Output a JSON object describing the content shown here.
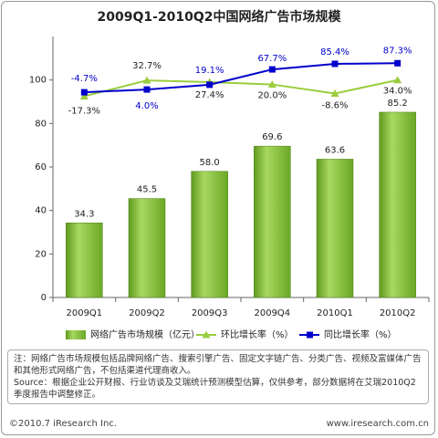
{
  "chart_data": {
    "type": "bar",
    "title": "2009Q1-2010Q2中国网络广告市场规模",
    "categories": [
      "2009Q1",
      "2009Q2",
      "2009Q3",
      "2009Q4",
      "2010Q1",
      "2010Q2"
    ],
    "series": [
      {
        "name": "网络广告市场规模（亿元）",
        "type": "bar",
        "color": "#8cc63e",
        "values": [
          34.3,
          45.5,
          58.0,
          69.6,
          63.6,
          85.2
        ],
        "value_labels": [
          "34.3",
          "45.5",
          "58.0",
          "69.6",
          "63.6",
          "85.2"
        ]
      },
      {
        "name": "环比增长率（%）",
        "type": "line",
        "axis": "y2",
        "color": "#9acd3c",
        "values": [
          -17.3,
          32.7,
          27.4,
          20.0,
          -8.6,
          34.0
        ],
        "value_labels": [
          "-17.3%",
          "32.7%",
          "27.4%",
          "20.0%",
          "-8.6%",
          "34.0%"
        ]
      },
      {
        "name": "同比增长率（%）",
        "type": "line",
        "axis": "y2",
        "color": "#0000cc",
        "values": [
          -4.7,
          4.0,
          19.1,
          67.7,
          85.4,
          87.3
        ],
        "value_labels": [
          "-4.7%",
          "4.0%",
          "19.1%",
          "67.7%",
          "85.4%",
          "87.3%"
        ]
      }
    ],
    "ylim": [
      0,
      120
    ],
    "yticks": [
      0,
      20,
      40,
      60,
      80,
      100
    ],
    "y2lim": [
      -655,
      172
    ]
  },
  "note": "注：网络广告市场规模包括品牌网络广告、搜索引擎广告、固定文字链广告、分类广告、视频及富媒体广告和其他形式网络广告，不包括渠道代理商收入。",
  "source": "Source：根据企业公开财报、行业访谈及艾瑞统计预测模型估算，仅供参考，部分数据将在艾瑞2010Q2季度报告中调整修正。",
  "footer": {
    "copyright": "©2010.7 iResearch Inc.",
    "website": "www.iresearch.com.cn"
  }
}
